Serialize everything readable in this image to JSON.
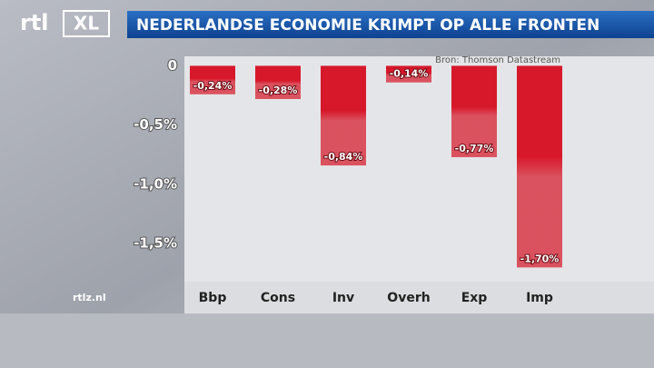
{
  "chart_data": {
    "type": "bar",
    "title": "NEDERLANDSE ECONOMIE KRIMPT OP ALLE FRONTEN",
    "source": "Bron: Thomson Datastream",
    "logo_text": "rtl",
    "logo_badge": "XL",
    "watermark": "rtlz.nl",
    "categories": [
      "Bbp",
      "Cons",
      "Inv",
      "Overh",
      "Exp",
      "Imp"
    ],
    "values": [
      -0.24,
      -0.28,
      -0.84,
      -0.14,
      -0.77,
      -1.7
    ],
    "value_labels": [
      "-0,24%",
      "-0,28%",
      "-0,84%",
      "-0,14%",
      "-0,77%",
      "-1,70%"
    ],
    "color": "#d7182a",
    "ylim": [
      -1.82,
      0.08
    ],
    "yticks": [
      0,
      {
        "value": -0.5,
        "label": "-0,5%"
      },
      {
        "value": -1.0,
        "label": "-1,0%"
      },
      {
        "value": -1.5,
        "label": "-1,5%"
      }
    ],
    "grid": false
  }
}
